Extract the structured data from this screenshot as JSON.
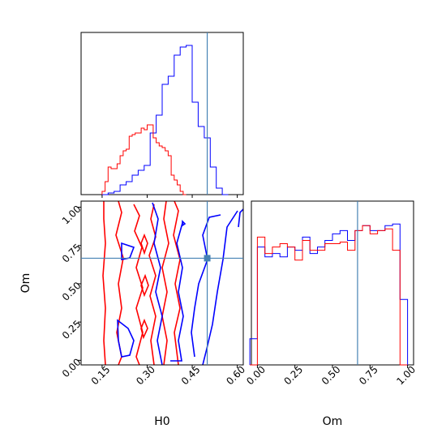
{
  "chart_data": {
    "type": "corner",
    "parameters": [
      "H0",
      "Om"
    ],
    "truth": {
      "H0": 0.5,
      "Om": 0.667
    },
    "series": [
      {
        "color": "#0000ff"
      },
      {
        "color": "#ff0000"
      }
    ],
    "truth_color": "#4682b4",
    "panels": {
      "h0_hist": {
        "xlim": [
          0.08,
          0.62
        ],
        "ylim": [
          0,
          1.0
        ],
        "bins_start": 0.15,
        "bin_width": 0.02,
        "blue": [
          0.0,
          0.01,
          0.02,
          0.06,
          0.08,
          0.12,
          0.15,
          0.18,
          0.38,
          0.49,
          0.68,
          0.73,
          0.86,
          0.91,
          0.92,
          0.57,
          0.42,
          0.35,
          0.17,
          0.04,
          0.0
        ],
        "red_start": 0.15,
        "red_bin_width": 0.01,
        "red": [
          0.02,
          0.08,
          0.17,
          0.16,
          0.16,
          0.19,
          0.24,
          0.27,
          0.28,
          0.36,
          0.37,
          0.38,
          0.38,
          0.41,
          0.4,
          0.43,
          0.43,
          0.35,
          0.32,
          0.3,
          0.29,
          0.27,
          0.24,
          0.12,
          0.09,
          0.06,
          0.02,
          0.0
        ]
      },
      "om_hist": {
        "xlim": [
          -0.04,
          1.04
        ],
        "ylim": [
          0,
          1.0
        ],
        "bin_start": -0.05,
        "bin_width": 0.05,
        "blue": [
          0.16,
          0.72,
          0.66,
          0.68,
          0.66,
          0.72,
          0.7,
          0.78,
          0.68,
          0.72,
          0.76,
          0.8,
          0.82,
          0.76,
          0.82,
          0.85,
          0.82,
          0.82,
          0.85,
          0.86,
          0.4
        ],
        "red": [
          0.0,
          0.78,
          0.68,
          0.72,
          0.74,
          0.72,
          0.64,
          0.76,
          0.7,
          0.7,
          0.74,
          0.74,
          0.75,
          0.7,
          0.82,
          0.85,
          0.8,
          0.82,
          0.83,
          0.7,
          0.0
        ]
      },
      "joint": {
        "xlim": [
          0.08,
          0.62
        ],
        "ylim": [
          -0.03,
          1.04
        ]
      }
    },
    "xticks_h0": [
      "0.15",
      "0.30",
      "0.45",
      "0.60"
    ],
    "xticks_h0_values": [
      0.15,
      0.3,
      0.45,
      0.6
    ],
    "yticks_om": [
      "0.00",
      "0.25",
      "0.50",
      "0.75",
      "1.00"
    ],
    "yticks_om_values": [
      0.0,
      0.25,
      0.5,
      0.75,
      1.0
    ],
    "xticks_om": [
      "0.00",
      "0.25",
      "0.50",
      "0.75",
      "1.00"
    ],
    "xticks_om_values": [
      0.0,
      0.25,
      0.5,
      0.75,
      1.0
    ],
    "xlabel_h0": "H0",
    "xlabel_om": "Om",
    "ylabel_om": "Om"
  }
}
